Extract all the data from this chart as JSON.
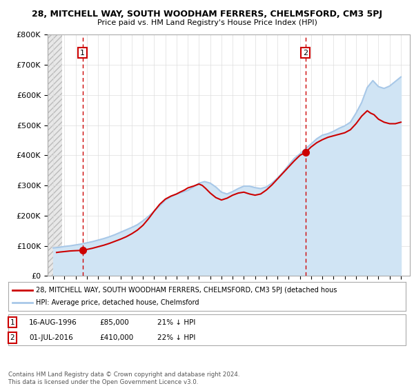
{
  "title": "28, MITCHELL WAY, SOUTH WOODHAM FERRERS, CHELMSFORD, CM3 5PJ",
  "subtitle": "Price paid vs. HM Land Registry's House Price Index (HPI)",
  "ylim": [
    0,
    800000
  ],
  "yticks": [
    0,
    100000,
    200000,
    300000,
    400000,
    500000,
    600000,
    700000,
    800000
  ],
  "ytick_labels": [
    "£0",
    "£100K",
    "£200K",
    "£300K",
    "£400K",
    "£500K",
    "£600K",
    "£700K",
    "£800K"
  ],
  "xlim_start": 1993.5,
  "xlim_end": 2025.8,
  "hatch_end": 1994.8,
  "sale1_x": 1996.62,
  "sale1_y": 85000,
  "sale1_label": "1",
  "sale2_x": 2016.5,
  "sale2_y": 410000,
  "sale2_label": "2",
  "red_line_color": "#cc0000",
  "blue_line_color": "#a8c8e8",
  "blue_fill_color": "#d0e4f4",
  "hatch_color": "#e0e0e0",
  "grid_color": "#dddddd",
  "legend1_text": "28, MITCHELL WAY, SOUTH WOODHAM FERRERS, CHELMSFORD, CM3 5PJ (detached hous",
  "legend2_text": "HPI: Average price, detached house, Chelmsford",
  "footer": "Contains HM Land Registry data © Crown copyright and database right 2024.\nThis data is licensed under the Open Government Licence v3.0.",
  "hpi_years": [
    1994,
    1994.5,
    1995,
    1995.5,
    1996,
    1996.5,
    1997,
    1997.5,
    1998,
    1998.5,
    1999,
    1999.5,
    2000,
    2000.5,
    2001,
    2001.5,
    2002,
    2002.5,
    2003,
    2003.5,
    2004,
    2004.5,
    2005,
    2005.5,
    2006,
    2006.5,
    2007,
    2007.5,
    2008,
    2008.5,
    2009,
    2009.5,
    2010,
    2010.5,
    2011,
    2011.5,
    2012,
    2012.5,
    2013,
    2013.5,
    2014,
    2014.5,
    2015,
    2015.5,
    2016,
    2016.5,
    2017,
    2017.5,
    2018,
    2018.5,
    2019,
    2019.5,
    2020,
    2020.5,
    2021,
    2021.5,
    2022,
    2022.5,
    2023,
    2023.5,
    2024,
    2024.5,
    2025
  ],
  "hpi_values": [
    93000,
    95000,
    98000,
    100000,
    103000,
    106000,
    110000,
    114000,
    119000,
    124000,
    130000,
    137000,
    145000,
    153000,
    161000,
    170000,
    183000,
    198000,
    215000,
    233000,
    252000,
    263000,
    272000,
    278000,
    284000,
    295000,
    308000,
    313000,
    308000,
    295000,
    278000,
    272000,
    280000,
    290000,
    298000,
    298000,
    293000,
    290000,
    295000,
    308000,
    325000,
    345000,
    368000,
    390000,
    405000,
    422000,
    438000,
    455000,
    467000,
    472000,
    480000,
    490000,
    498000,
    510000,
    540000,
    575000,
    625000,
    648000,
    628000,
    622000,
    630000,
    645000,
    660000
  ],
  "red_years": [
    1994.3,
    1994.6,
    1995.0,
    1995.5,
    1996.0,
    1996.3,
    1996.62,
    1997.0,
    1997.5,
    1998.0,
    1998.5,
    1999.0,
    1999.5,
    2000.0,
    2000.5,
    2001.0,
    2001.5,
    2002.0,
    2002.5,
    2003.0,
    2003.5,
    2004.0,
    2004.5,
    2005.0,
    2005.3,
    2005.7,
    2006.0,
    2006.5,
    2007.0,
    2007.3,
    2007.6,
    2008.0,
    2008.5,
    2009.0,
    2009.5,
    2010.0,
    2010.5,
    2011.0,
    2011.5,
    2012.0,
    2012.5,
    2013.0,
    2013.5,
    2014.0,
    2014.5,
    2015.0,
    2015.5,
    2016.0,
    2016.5,
    2017.0,
    2017.5,
    2018.0,
    2018.5,
    2019.0,
    2019.5,
    2020.0,
    2020.5,
    2021.0,
    2021.5,
    2022.0,
    2022.3,
    2022.6,
    2023.0,
    2023.5,
    2024.0,
    2024.5,
    2025.0
  ],
  "red_values": [
    78000,
    79500,
    81000,
    83000,
    84000,
    84500,
    85000,
    88000,
    92000,
    97000,
    102000,
    108000,
    115000,
    122000,
    130000,
    140000,
    152000,
    168000,
    190000,
    215000,
    238000,
    255000,
    265000,
    272000,
    278000,
    285000,
    292000,
    298000,
    305000,
    300000,
    290000,
    275000,
    260000,
    252000,
    258000,
    268000,
    275000,
    278000,
    272000,
    268000,
    272000,
    285000,
    302000,
    322000,
    342000,
    362000,
    382000,
    400000,
    410000,
    428000,
    442000,
    452000,
    460000,
    465000,
    470000,
    475000,
    485000,
    505000,
    530000,
    548000,
    540000,
    535000,
    520000,
    510000,
    505000,
    505000,
    510000
  ]
}
